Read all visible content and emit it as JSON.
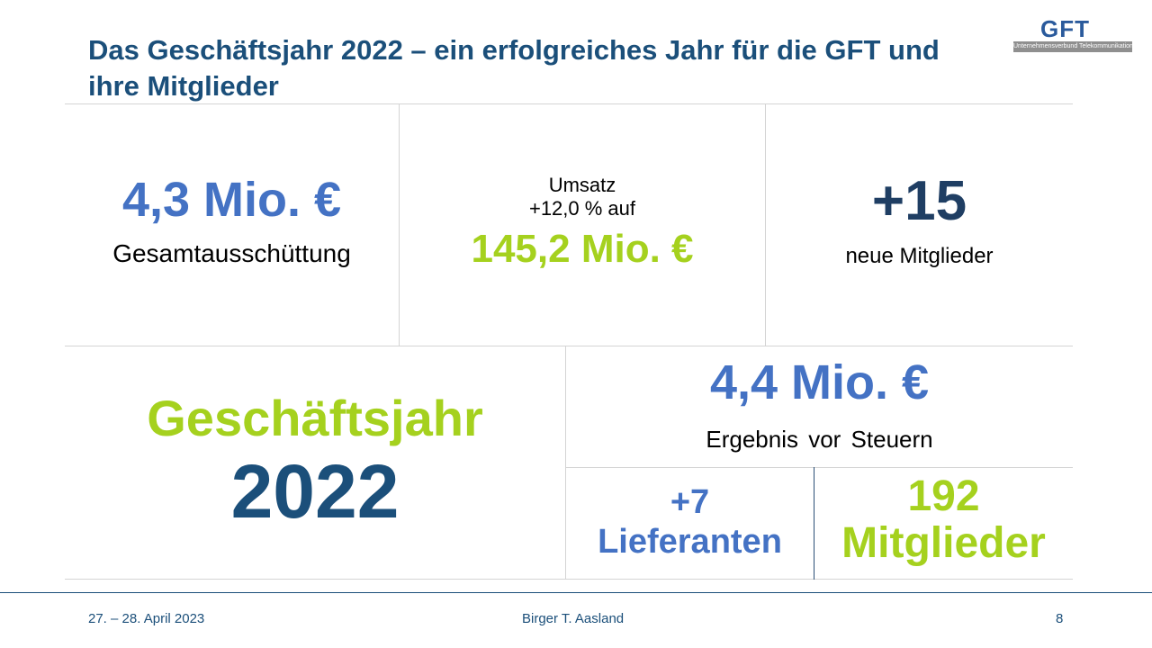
{
  "title": "Das Geschäftsjahr 2022 – ein erfolgreiches Jahr für die GFT und ihre Mitglieder",
  "logo": {
    "name": "GFT",
    "tagline": "Unternehmensverbund Telekommunikation"
  },
  "boxes": {
    "payout": {
      "value": "4,3 Mio. €",
      "label": "Gesamtausschüttung"
    },
    "revenue": {
      "line1": "Umsatz",
      "line2": "+12,0 % auf",
      "value": "145,2 Mio. €"
    },
    "new_members": {
      "value": "+15",
      "label": "neue Mitglieder"
    },
    "fiscal_year": {
      "label": "Geschäftsjahr",
      "year": "2022"
    },
    "earnings": {
      "value": "4,4 Mio. €",
      "label": "Ergebnis vor Steuern"
    },
    "suppliers": {
      "value": "+7",
      "label": "Lieferanten"
    },
    "members": {
      "value": "192",
      "label": "Mitglieder"
    }
  },
  "footer": {
    "date": "27. – 28. April 2023",
    "presenter": "Birger T. Aasland",
    "page": "8"
  },
  "colors": {
    "title": "#1b4f7a",
    "blue": "#4472c4",
    "green": "#a5d11e",
    "navy": "#1f3e63"
  }
}
